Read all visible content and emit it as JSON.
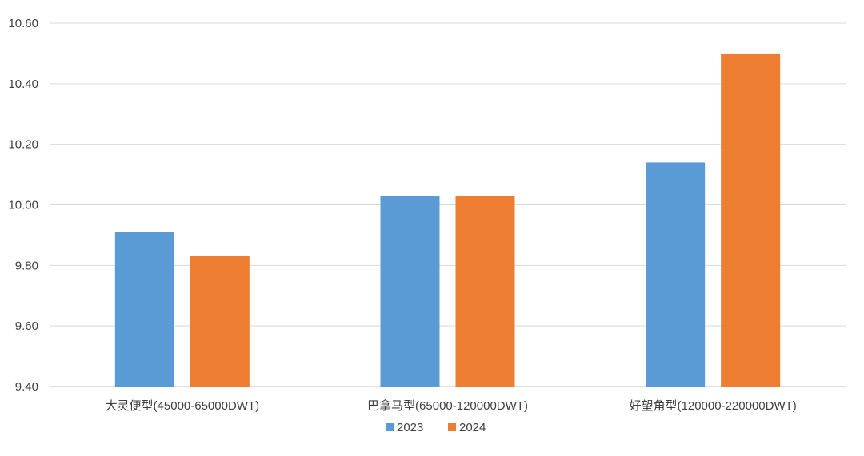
{
  "chart_data": {
    "type": "bar",
    "title": "",
    "xlabel": "",
    "ylabel": "",
    "categories": [
      "大灵便型(45000-65000DWT)",
      "巴拿马型(65000-120000DWT)",
      "好望角型(120000-220000DWT)"
    ],
    "series": [
      {
        "name": "2023",
        "color": "#5b9bd5",
        "values": [
          9.91,
          10.03,
          10.14
        ]
      },
      {
        "name": "2024",
        "color": "#ed7d31",
        "values": [
          9.83,
          10.03,
          10.5
        ]
      }
    ],
    "ylim": [
      9.4,
      10.6
    ],
    "yticks": [
      "9.40",
      "9.60",
      "9.80",
      "10.00",
      "10.20",
      "10.40",
      "10.60"
    ],
    "grid": true,
    "legend_position": "bottom"
  }
}
